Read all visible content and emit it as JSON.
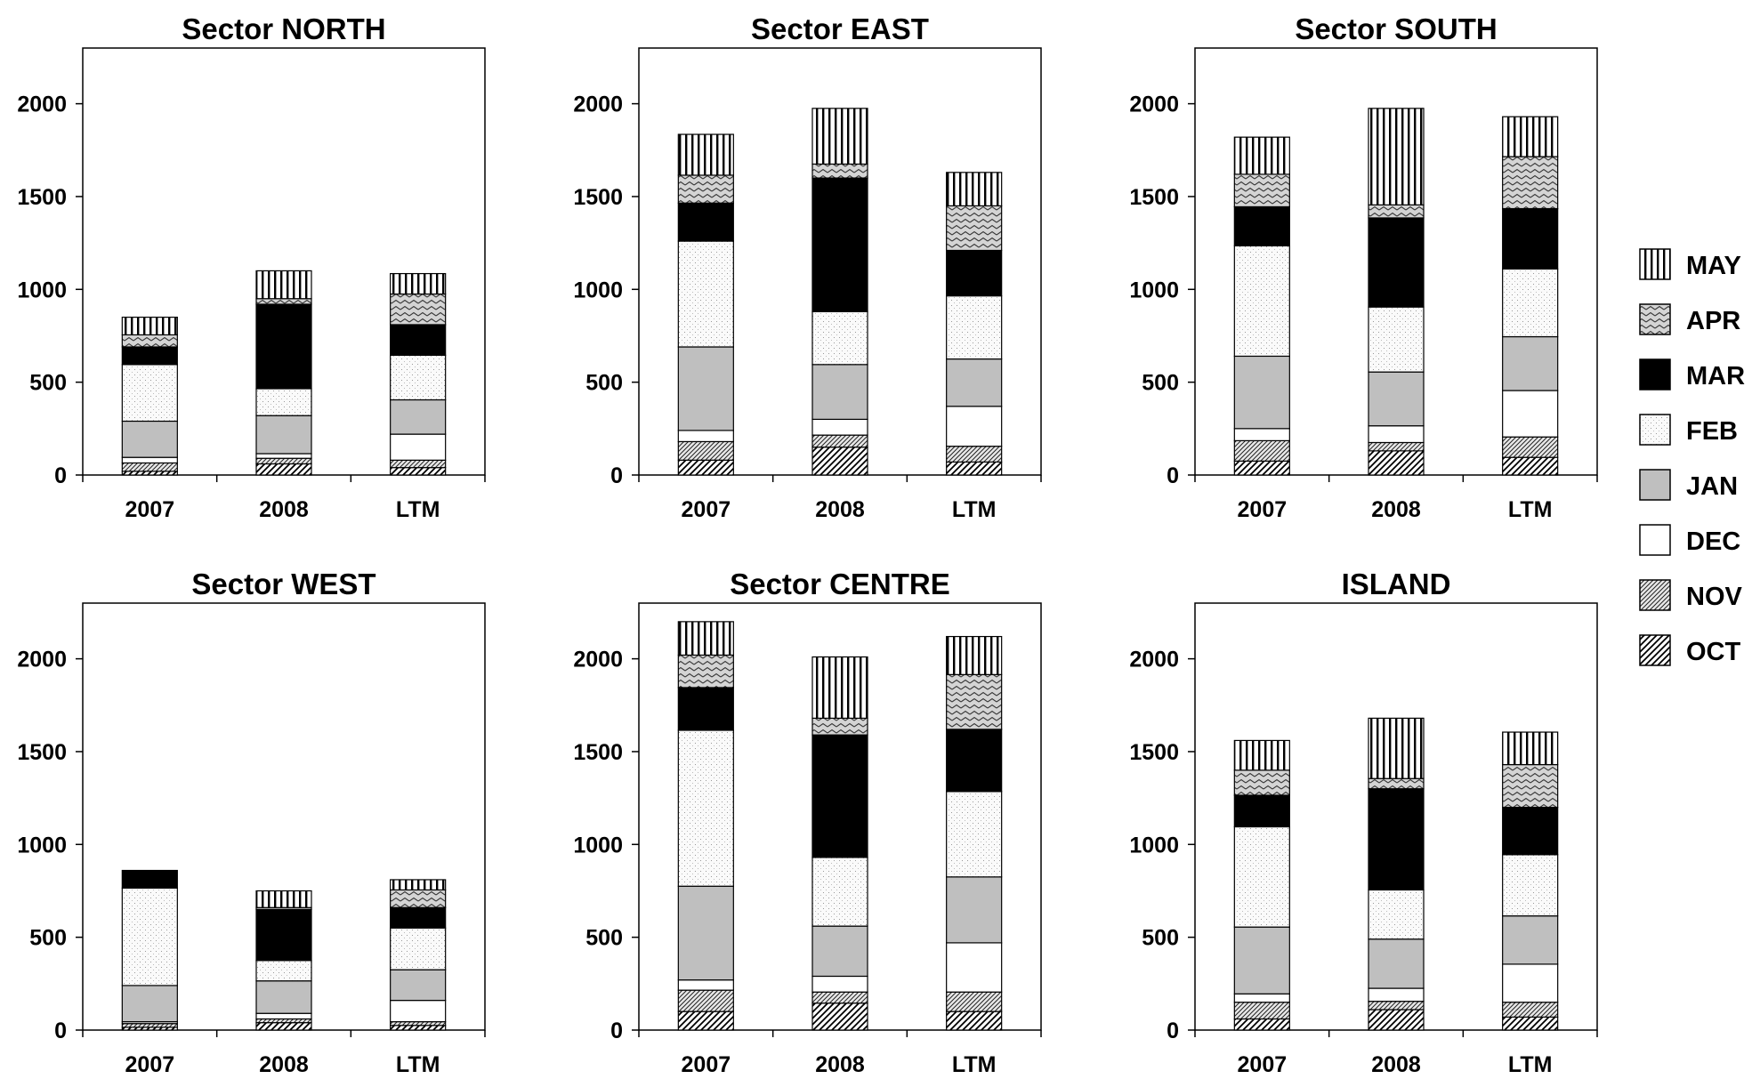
{
  "chart_data": {
    "type": "bar",
    "stacked": true,
    "categories": [
      "2007",
      "2008",
      "LTM"
    ],
    "ylim": [
      0,
      2300
    ],
    "yticks": [
      0,
      500,
      1000,
      1500,
      2000
    ],
    "legend_position": "right",
    "legend": [
      {
        "name": "MAY",
        "pattern": "vertical-lines-icon"
      },
      {
        "name": "APR",
        "pattern": "zigzag-icon"
      },
      {
        "name": "MAR",
        "pattern": "solid-black-icon"
      },
      {
        "name": "FEB",
        "pattern": "dots-icon"
      },
      {
        "name": "JAN",
        "pattern": "solid-gray-icon"
      },
      {
        "name": "DEC",
        "pattern": "solid-white-icon"
      },
      {
        "name": "NOV",
        "pattern": "dense-diagonal-icon"
      },
      {
        "name": "OCT",
        "pattern": "wide-diagonal-icon"
      }
    ],
    "stack_order": [
      "OCT",
      "NOV",
      "DEC",
      "JAN",
      "FEB",
      "MAR",
      "APR",
      "MAY"
    ],
    "panels": [
      {
        "title": "Sector NORTH",
        "series": [
          {
            "name": "OCT",
            "values": [
              20,
              60,
              40
            ]
          },
          {
            "name": "NOV",
            "values": [
              45,
              30,
              40
            ]
          },
          {
            "name": "DEC",
            "values": [
              30,
              25,
              140
            ]
          },
          {
            "name": "JAN",
            "values": [
              195,
              205,
              185
            ]
          },
          {
            "name": "FEB",
            "values": [
              305,
              145,
              240
            ]
          },
          {
            "name": "MAR",
            "values": [
              95,
              455,
              165
            ]
          },
          {
            "name": "APR",
            "values": [
              65,
              30,
              165
            ]
          },
          {
            "name": "MAY",
            "values": [
              95,
              150,
              110
            ]
          }
        ]
      },
      {
        "title": "Sector EAST",
        "series": [
          {
            "name": "OCT",
            "values": [
              80,
              150,
              70
            ]
          },
          {
            "name": "NOV",
            "values": [
              100,
              65,
              85
            ]
          },
          {
            "name": "DEC",
            "values": [
              60,
              85,
              215
            ]
          },
          {
            "name": "JAN",
            "values": [
              450,
              295,
              255
            ]
          },
          {
            "name": "FEB",
            "values": [
              570,
              285,
              340
            ]
          },
          {
            "name": "MAR",
            "values": [
              205,
              720,
              245
            ]
          },
          {
            "name": "APR",
            "values": [
              150,
              75,
              240
            ]
          },
          {
            "name": "MAY",
            "values": [
              220,
              300,
              180
            ]
          }
        ]
      },
      {
        "title": "Sector SOUTH",
        "series": [
          {
            "name": "OCT",
            "values": [
              75,
              130,
              95
            ]
          },
          {
            "name": "NOV",
            "values": [
              110,
              45,
              110
            ]
          },
          {
            "name": "DEC",
            "values": [
              65,
              90,
              250
            ]
          },
          {
            "name": "JAN",
            "values": [
              390,
              290,
              290
            ]
          },
          {
            "name": "FEB",
            "values": [
              595,
              350,
              365
            ]
          },
          {
            "name": "MAR",
            "values": [
              210,
              480,
              325
            ]
          },
          {
            "name": "APR",
            "values": [
              175,
              70,
              280
            ]
          },
          {
            "name": "MAY",
            "values": [
              200,
              520,
              215
            ]
          }
        ]
      },
      {
        "title": "Sector WEST",
        "series": [
          {
            "name": "OCT",
            "values": [
              15,
              40,
              25
            ]
          },
          {
            "name": "NOV",
            "values": [
              20,
              20,
              20
            ]
          },
          {
            "name": "DEC",
            "values": [
              10,
              30,
              115
            ]
          },
          {
            "name": "JAN",
            "values": [
              195,
              175,
              165
            ]
          },
          {
            "name": "FEB",
            "values": [
              525,
              110,
              225
            ]
          },
          {
            "name": "MAR",
            "values": [
              95,
              275,
              110
            ]
          },
          {
            "name": "APR",
            "values": [
              0,
              10,
              95
            ]
          },
          {
            "name": "MAY",
            "values": [
              0,
              90,
              55
            ]
          }
        ]
      },
      {
        "title": "Sector CENTRE",
        "series": [
          {
            "name": "OCT",
            "values": [
              100,
              145,
              100
            ]
          },
          {
            "name": "NOV",
            "values": [
              115,
              60,
              105
            ]
          },
          {
            "name": "DEC",
            "values": [
              55,
              85,
              265
            ]
          },
          {
            "name": "JAN",
            "values": [
              505,
              270,
              355
            ]
          },
          {
            "name": "FEB",
            "values": [
              840,
              370,
              460
            ]
          },
          {
            "name": "MAR",
            "values": [
              230,
              660,
              335
            ]
          },
          {
            "name": "APR",
            "values": [
              175,
              90,
              295
            ]
          },
          {
            "name": "MAY",
            "values": [
              180,
              330,
              205
            ]
          }
        ]
      },
      {
        "title": "ISLAND",
        "series": [
          {
            "name": "OCT",
            "values": [
              60,
              110,
              70
            ]
          },
          {
            "name": "NOV",
            "values": [
              90,
              45,
              80
            ]
          },
          {
            "name": "DEC",
            "values": [
              45,
              70,
              205
            ]
          },
          {
            "name": "JAN",
            "values": [
              360,
              265,
              260
            ]
          },
          {
            "name": "FEB",
            "values": [
              540,
              265,
              330
            ]
          },
          {
            "name": "MAR",
            "values": [
              170,
              545,
              255
            ]
          },
          {
            "name": "APR",
            "values": [
              135,
              55,
              230
            ]
          },
          {
            "name": "MAY",
            "values": [
              160,
              325,
              175
            ]
          }
        ]
      }
    ]
  }
}
